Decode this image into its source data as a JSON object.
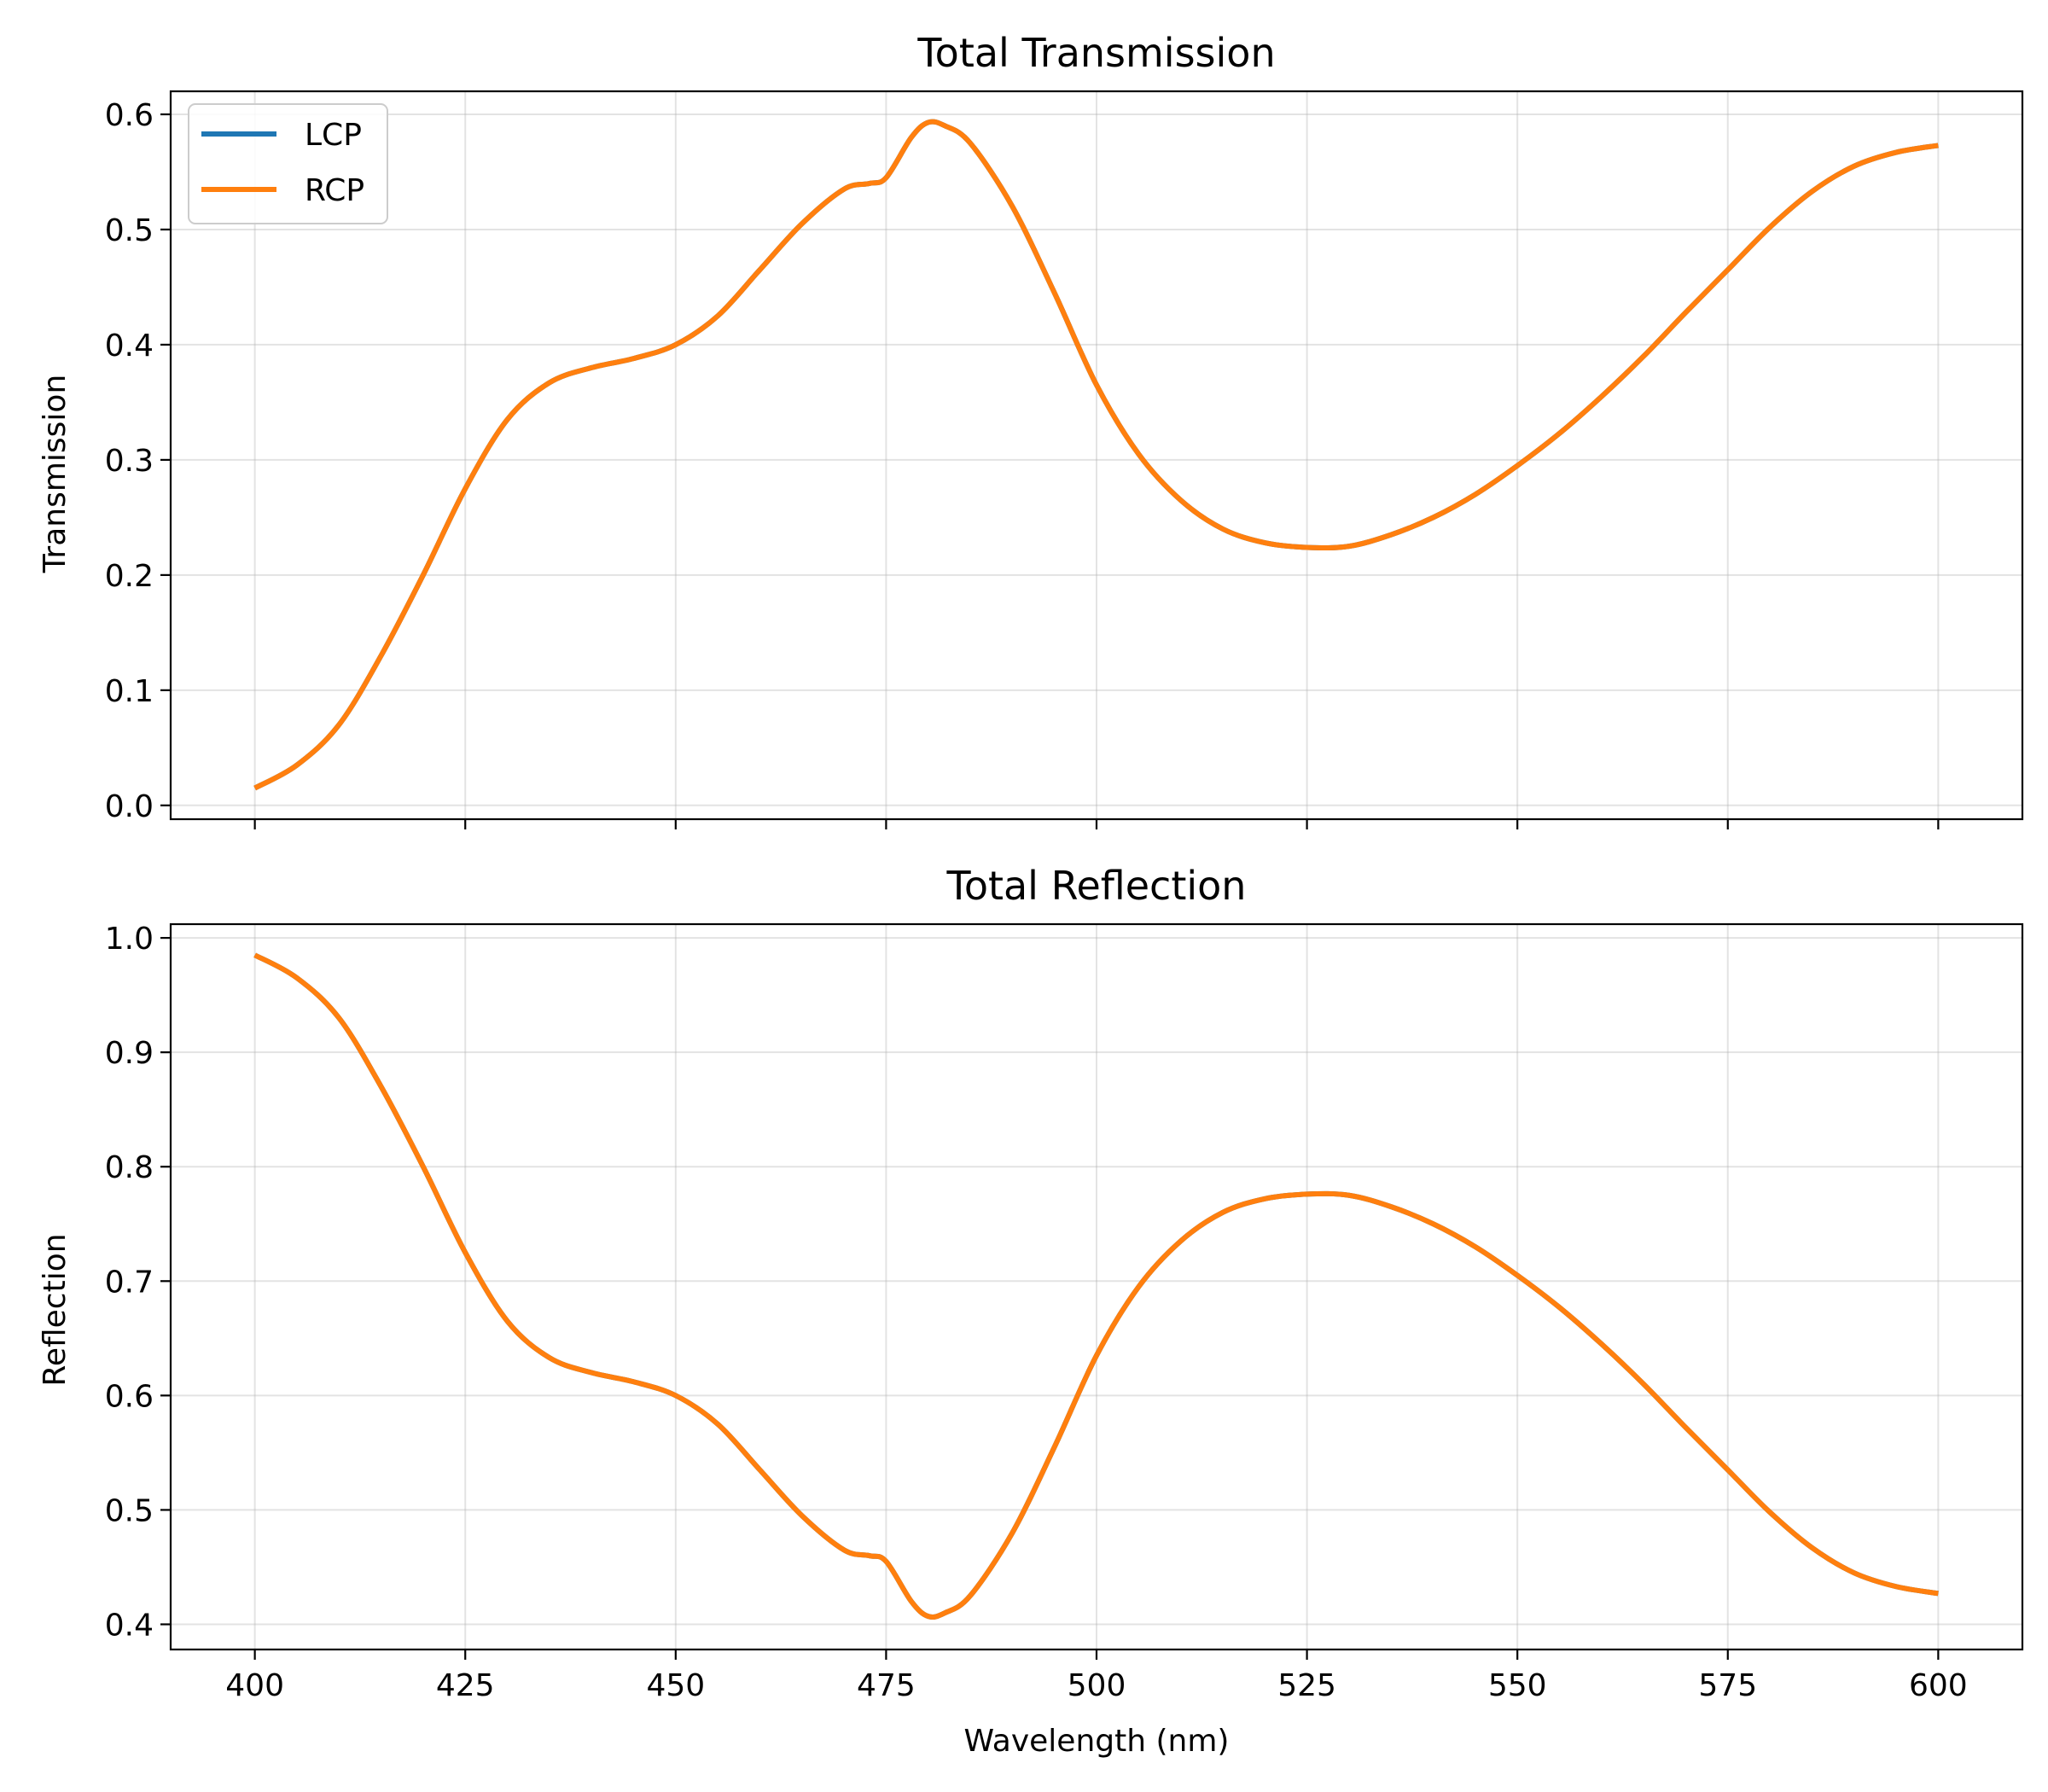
{
  "chart_data": [
    {
      "type": "line",
      "title": "Total Transmission",
      "xlabel": "",
      "ylabel": "Transmission",
      "xlim": [
        390,
        610
      ],
      "ylim": [
        -0.012,
        0.62
      ],
      "xticks": [
        400,
        425,
        450,
        475,
        500,
        525,
        550,
        575,
        600
      ],
      "xtick_labels_visible": false,
      "yticks": [
        0.0,
        0.1,
        0.2,
        0.3,
        0.4,
        0.5,
        0.6
      ],
      "ytick_labels": [
        "0.0",
        "0.1",
        "0.2",
        "0.3",
        "0.4",
        "0.5",
        "0.6"
      ],
      "grid": true,
      "legend": "top-left",
      "x": [
        400,
        405,
        410,
        415,
        420,
        425,
        430,
        435,
        440,
        445,
        450,
        455,
        460,
        465,
        470,
        473,
        475,
        478,
        480,
        482,
        485,
        490,
        495,
        500,
        505,
        510,
        515,
        520,
        525,
        530,
        535,
        540,
        545,
        550,
        555,
        560,
        565,
        570,
        575,
        580,
        585,
        590,
        595,
        600
      ],
      "series": [
        {
          "name": "LCP",
          "color": "#1f77b4",
          "values": [
            0.015,
            0.035,
            0.07,
            0.13,
            0.2,
            0.275,
            0.335,
            0.367,
            0.38,
            0.388,
            0.4,
            0.425,
            0.465,
            0.505,
            0.535,
            0.54,
            0.545,
            0.58,
            0.593,
            0.59,
            0.575,
            0.52,
            0.445,
            0.365,
            0.305,
            0.265,
            0.24,
            0.228,
            0.224,
            0.225,
            0.235,
            0.25,
            0.27,
            0.295,
            0.323,
            0.355,
            0.39,
            0.428,
            0.465,
            0.502,
            0.533,
            0.555,
            0.567,
            0.573
          ]
        },
        {
          "name": "RCP",
          "color": "#ff7f0e",
          "values": [
            0.015,
            0.035,
            0.07,
            0.13,
            0.2,
            0.275,
            0.335,
            0.367,
            0.38,
            0.388,
            0.4,
            0.425,
            0.465,
            0.505,
            0.535,
            0.54,
            0.545,
            0.58,
            0.593,
            0.59,
            0.575,
            0.52,
            0.445,
            0.365,
            0.305,
            0.265,
            0.24,
            0.228,
            0.224,
            0.225,
            0.235,
            0.25,
            0.27,
            0.295,
            0.323,
            0.355,
            0.39,
            0.428,
            0.465,
            0.502,
            0.533,
            0.555,
            0.567,
            0.573
          ]
        }
      ]
    },
    {
      "type": "line",
      "title": "Total Reflection",
      "xlabel": "Wavelength (nm)",
      "ylabel": "Reflection",
      "xlim": [
        390,
        610
      ],
      "ylim": [
        0.378,
        1.012
      ],
      "xticks": [
        400,
        425,
        450,
        475,
        500,
        525,
        550,
        575,
        600
      ],
      "xtick_labels": [
        "400",
        "425",
        "450",
        "475",
        "500",
        "525",
        "550",
        "575",
        "600"
      ],
      "yticks": [
        0.4,
        0.5,
        0.6,
        0.7,
        0.8,
        0.9,
        1.0
      ],
      "ytick_labels": [
        "0.4",
        "0.5",
        "0.6",
        "0.7",
        "0.8",
        "0.9",
        "1.0"
      ],
      "grid": true,
      "legend": "none",
      "x": [
        400,
        405,
        410,
        415,
        420,
        425,
        430,
        435,
        440,
        445,
        450,
        455,
        460,
        465,
        470,
        473,
        475,
        478,
        480,
        482,
        485,
        490,
        495,
        500,
        505,
        510,
        515,
        520,
        525,
        530,
        535,
        540,
        545,
        550,
        555,
        560,
        565,
        570,
        575,
        580,
        585,
        590,
        595,
        600
      ],
      "series": [
        {
          "name": "LCP",
          "color": "#1f77b4",
          "values": [
            0.985,
            0.965,
            0.93,
            0.87,
            0.8,
            0.725,
            0.665,
            0.633,
            0.62,
            0.612,
            0.6,
            0.575,
            0.535,
            0.495,
            0.465,
            0.46,
            0.455,
            0.42,
            0.407,
            0.41,
            0.425,
            0.48,
            0.555,
            0.635,
            0.695,
            0.735,
            0.76,
            0.772,
            0.776,
            0.775,
            0.765,
            0.75,
            0.73,
            0.705,
            0.677,
            0.645,
            0.61,
            0.572,
            0.535,
            0.498,
            0.467,
            0.445,
            0.433,
            0.427
          ]
        },
        {
          "name": "RCP",
          "color": "#ff7f0e",
          "values": [
            0.985,
            0.965,
            0.93,
            0.87,
            0.8,
            0.725,
            0.665,
            0.633,
            0.62,
            0.612,
            0.6,
            0.575,
            0.535,
            0.495,
            0.465,
            0.46,
            0.455,
            0.42,
            0.407,
            0.41,
            0.425,
            0.48,
            0.555,
            0.635,
            0.695,
            0.735,
            0.76,
            0.772,
            0.776,
            0.775,
            0.765,
            0.75,
            0.73,
            0.705,
            0.677,
            0.645,
            0.61,
            0.572,
            0.535,
            0.498,
            0.467,
            0.445,
            0.433,
            0.427
          ]
        }
      ]
    }
  ]
}
